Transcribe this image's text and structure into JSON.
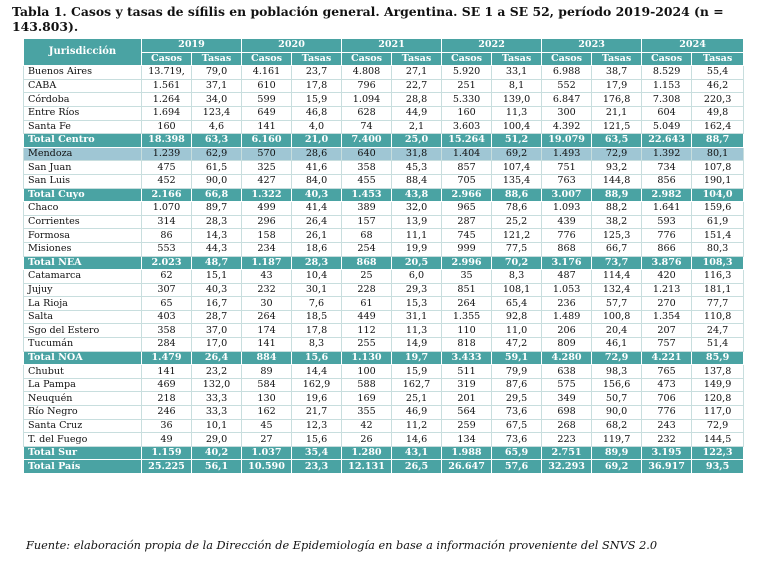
{
  "title": "Tabla 1. Casos y tasas de sífilis en población general. Argentina. SE 1 a SE 52, período 2019-2024 (n = 143.803).",
  "header": {
    "jurisdiccion": "Jurisdicción",
    "years": [
      "2019",
      "2020",
      "2021",
      "2022",
      "2023",
      "2024"
    ],
    "casos": "Casos",
    "tasas": "Tasas"
  },
  "highlight_color": "#9fc6d4",
  "header_color": "#4aa3a3",
  "rows": [
    {
      "name": "Buenos Aires",
      "total": false,
      "values": [
        "13.719,",
        "79,0",
        "4.161",
        "23,7",
        "4.808",
        "27,1",
        "5.920",
        "33,1",
        "6.988",
        "38,7",
        "8.529",
        "55,4"
      ]
    },
    {
      "name": "CABA",
      "total": false,
      "values": [
        "1.561",
        "37,1",
        "610",
        "17,8",
        "796",
        "22,7",
        "251",
        "8,1",
        "552",
        "17,9",
        "1.153",
        "46,2"
      ]
    },
    {
      "name": "Córdoba",
      "total": false,
      "values": [
        "1.264",
        "34,0",
        "599",
        "15,9",
        "1.094",
        "28,8",
        "5.330",
        "139,0",
        "6.847",
        "176,8",
        "7.308",
        "220,3"
      ]
    },
    {
      "name": "Entre Ríos",
      "total": false,
      "values": [
        "1.694",
        "123,4",
        "649",
        "46,8",
        "628",
        "44,9",
        "160",
        "11,3",
        "300",
        "21,1",
        "604",
        "49,8"
      ]
    },
    {
      "name": "Santa Fe",
      "total": false,
      "values": [
        "160",
        "4,6",
        "141",
        "4,0",
        "74",
        "2,1",
        "3.603",
        "100,4",
        "4.392",
        "121,5",
        "5.049",
        "162,4"
      ]
    },
    {
      "name": "Total Centro",
      "total": true,
      "values": [
        "18.398",
        "63,3",
        "6.160",
        "21,0",
        "7.400",
        "25,0",
        "15.264",
        "51,2",
        "19.079",
        "63,5",
        "22.643",
        "88,7"
      ]
    },
    {
      "name": "Mendoza",
      "total": false,
      "hl": true,
      "values": [
        "1.239",
        "62,9",
        "570",
        "28,6",
        "640",
        "31,8",
        "1.404",
        "69,2",
        "1.493",
        "72,9",
        "1.392",
        "80,1"
      ]
    },
    {
      "name": "San Juan",
      "total": false,
      "values": [
        "475",
        "61,5",
        "325",
        "41,6",
        "358",
        "45,3",
        "857",
        "107,4",
        "751",
        "93,2",
        "734",
        "107,8"
      ]
    },
    {
      "name": "San Luis",
      "total": false,
      "values": [
        "452",
        "90,0",
        "427",
        "84,0",
        "455",
        "88,4",
        "705",
        "135,4",
        "763",
        "144,8",
        "856",
        "190,1"
      ]
    },
    {
      "name": "Total Cuyo",
      "total": true,
      "values": [
        "2.166",
        "66,8",
        "1.322",
        "40,3",
        "1.453",
        "43,8",
        "2.966",
        "88,6",
        "3.007",
        "88,9",
        "2.982",
        "104,0"
      ]
    },
    {
      "name": "Chaco",
      "total": false,
      "values": [
        "1.070",
        "89,7",
        "499",
        "41,4",
        "389",
        "32,0",
        "965",
        "78,6",
        "1.093",
        "88,2",
        "1.641",
        "159,6"
      ]
    },
    {
      "name": "Corrientes",
      "total": false,
      "values": [
        "314",
        "28,3",
        "296",
        "26,4",
        "157",
        "13,9",
        "287",
        "25,2",
        "439",
        "38,2",
        "593",
        "61,9"
      ]
    },
    {
      "name": "Formosa",
      "total": false,
      "values": [
        "86",
        "14,3",
        "158",
        "26,1",
        "68",
        "11,1",
        "745",
        "121,2",
        "776",
        "125,3",
        "776",
        "151,4"
      ]
    },
    {
      "name": "Misiones",
      "total": false,
      "values": [
        "553",
        "44,3",
        "234",
        "18,6",
        "254",
        "19,9",
        "999",
        "77,5",
        "868",
        "66,7",
        "866",
        "80,3"
      ]
    },
    {
      "name": "Total NEA",
      "total": true,
      "values": [
        "2.023",
        "48,7",
        "1.187",
        "28,3",
        "868",
        "20,5",
        "2.996",
        "70,2",
        "3.176",
        "73,7",
        "3.876",
        "108,3"
      ]
    },
    {
      "name": "Catamarca",
      "total": false,
      "values": [
        "62",
        "15,1",
        "43",
        "10,4",
        "25",
        "6,0",
        "35",
        "8,3",
        "487",
        "114,4",
        "420",
        "116,3"
      ]
    },
    {
      "name": "Jujuy",
      "total": false,
      "values": [
        "307",
        "40,3",
        "232",
        "30,1",
        "228",
        "29,3",
        "851",
        "108,1",
        "1.053",
        "132,4",
        "1.213",
        "181,1"
      ]
    },
    {
      "name": "La Rioja",
      "total": false,
      "values": [
        "65",
        "16,7",
        "30",
        "7,6",
        "61",
        "15,3",
        "264",
        "65,4",
        "236",
        "57,7",
        "270",
        "77,7"
      ]
    },
    {
      "name": "Salta",
      "total": false,
      "values": [
        "403",
        "28,7",
        "264",
        "18,5",
        "449",
        "31,1",
        "1.355",
        "92,8",
        "1.489",
        "100,8",
        "1.354",
        "110,8"
      ]
    },
    {
      "name": "Sgo del Estero",
      "total": false,
      "values": [
        "358",
        "37,0",
        "174",
        "17,8",
        "112",
        "11,3",
        "110",
        "11,0",
        "206",
        "20,4",
        "207",
        "24,7"
      ]
    },
    {
      "name": "Tucumán",
      "total": false,
      "values": [
        "284",
        "17,0",
        "141",
        "8,3",
        "255",
        "14,9",
        "818",
        "47,2",
        "809",
        "46,1",
        "757",
        "51,4"
      ]
    },
    {
      "name": "Total NOA",
      "total": true,
      "values": [
        "1.479",
        "26,4",
        "884",
        "15,6",
        "1.130",
        "19,7",
        "3.433",
        "59,1",
        "4.280",
        "72,9",
        "4.221",
        "85,9"
      ]
    },
    {
      "name": "Chubut",
      "total": false,
      "values": [
        "141",
        "23,2",
        "89",
        "14,4",
        "100",
        "15,9",
        "511",
        "79,9",
        "638",
        "98,3",
        "765",
        "137,8"
      ]
    },
    {
      "name": "La Pampa",
      "total": false,
      "values": [
        "469",
        "132,0",
        "584",
        "162,9",
        "588",
        "162,7",
        "319",
        "87,6",
        "575",
        "156,6",
        "473",
        "149,9"
      ]
    },
    {
      "name": "Neuquén",
      "total": false,
      "values": [
        "218",
        "33,3",
        "130",
        "19,6",
        "169",
        "25,1",
        "201",
        "29,5",
        "349",
        "50,7",
        "706",
        "120,8"
      ]
    },
    {
      "name": "Río Negro",
      "total": false,
      "values": [
        "246",
        "33,3",
        "162",
        "21,7",
        "355",
        "46,9",
        "564",
        "73,6",
        "698",
        "90,0",
        "776",
        "117,0"
      ]
    },
    {
      "name": "Santa Cruz",
      "total": false,
      "values": [
        "36",
        "10,1",
        "45",
        "12,3",
        "42",
        "11,2",
        "259",
        "67,5",
        "268",
        "68,2",
        "243",
        "72,9"
      ]
    },
    {
      "name": "T. del Fuego",
      "total": false,
      "values": [
        "49",
        "29,0",
        "27",
        "15,6",
        "26",
        "14,6",
        "134",
        "73,6",
        "223",
        "119,7",
        "232",
        "144,5"
      ]
    },
    {
      "name": "Total Sur",
      "total": true,
      "values": [
        "1.159",
        "40,2",
        "1.037",
        "35,4",
        "1.280",
        "43,1",
        "1.988",
        "65,9",
        "2.751",
        "89,9",
        "3.195",
        "122,3"
      ]
    },
    {
      "name": "Total País",
      "total": true,
      "values": [
        "25.225",
        "56,1",
        "10.590",
        "23,3",
        "12.131",
        "26,5",
        "26.647",
        "57,6",
        "32.293",
        "69,2",
        "36.917",
        "93,5"
      ]
    }
  ],
  "source": "Fuente: elaboración propia de la Dirección de Epidemiología en base a información proveniente del SNVS 2.0"
}
